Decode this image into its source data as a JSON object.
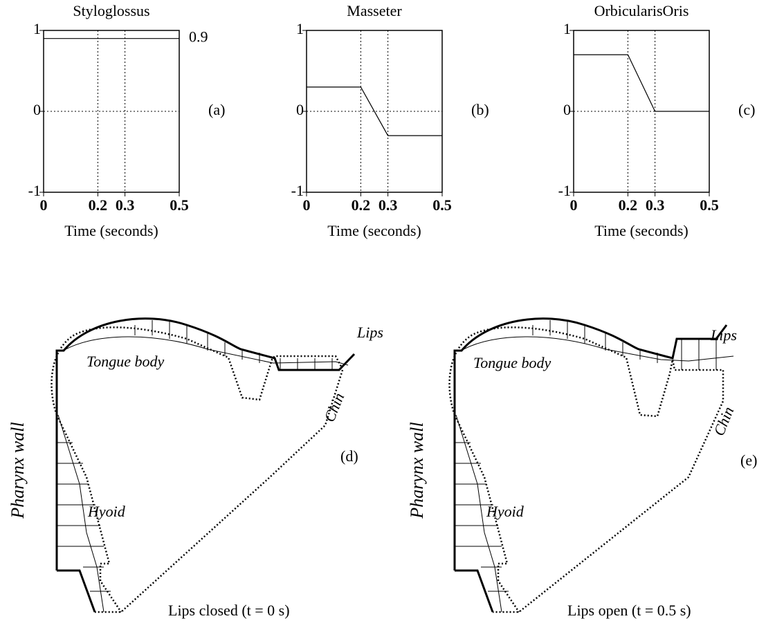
{
  "chart_data": [
    {
      "type": "line",
      "title": "Styloglossus",
      "xlabel": "Time (seconds)",
      "panel_label": "(a)",
      "x": [
        0,
        0.2,
        0.3,
        0.5
      ],
      "series": [
        {
          "color": "#000000",
          "values": [
            0.9,
            0.9,
            0.9,
            0.9
          ]
        }
      ],
      "end_label": true,
      "xlim": [
        0,
        0.5
      ],
      "ylim": [
        -1,
        1
      ],
      "xticks": [
        0,
        0.2,
        0.3,
        0.5
      ],
      "yticks": [
        -1,
        0,
        1
      ],
      "grid": true
    },
    {
      "type": "line",
      "title": "Masseter",
      "xlabel": "Time (seconds)",
      "panel_label": "(b)",
      "x": [
        0,
        0.2,
        0.3,
        0.5
      ],
      "series": [
        {
          "color": "#000000",
          "values": [
            0.3,
            0.3,
            -0.3,
            -0.3
          ]
        }
      ],
      "end_label": false,
      "xlim": [
        0,
        0.5
      ],
      "ylim": [
        -1,
        1
      ],
      "xticks": [
        0,
        0.2,
        0.3,
        0.5
      ],
      "yticks": [
        -1,
        0,
        1
      ],
      "grid": true
    },
    {
      "type": "line",
      "title": "OrbicularisOris",
      "xlabel": "Time (seconds)",
      "panel_label": "(c)",
      "x": [
        0,
        0.2,
        0.3,
        0.5
      ],
      "series": [
        {
          "color": "#000000",
          "values": [
            0.7,
            0.7,
            0,
            0
          ]
        }
      ],
      "end_label": false,
      "xlim": [
        0,
        0.5
      ],
      "ylim": [
        -1,
        1
      ],
      "xticks": [
        0,
        0.2,
        0.3,
        0.5
      ],
      "yticks": [
        -1,
        0,
        1
      ],
      "grid": true
    }
  ],
  "diagrams": [
    {
      "panel_label": "(d)",
      "caption": "Lips closed (t = 0 s)",
      "labels": {
        "lips": "Lips",
        "tongue": "Tongue body",
        "chin": "Chin",
        "pharynx": "Pharynx wall",
        "hyoid": "Hyoid"
      }
    },
    {
      "panel_label": "(e)",
      "caption": "Lips open (t = 0.5 s)",
      "labels": {
        "lips": "Lips",
        "tongue": "Tongue body",
        "chin": "Chin",
        "pharynx": "Pharynx wall",
        "hyoid": "Hyoid"
      }
    }
  ]
}
